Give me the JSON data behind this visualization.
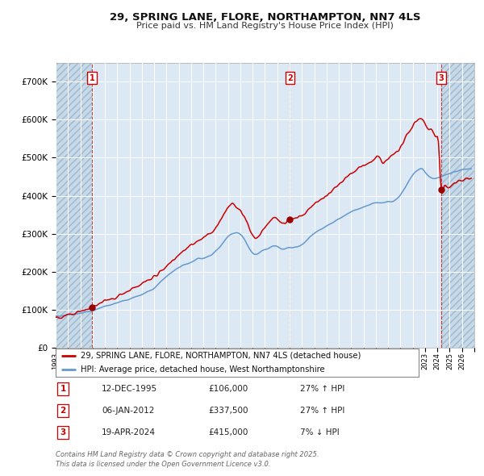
{
  "title1": "29, SPRING LANE, FLORE, NORTHAMPTON, NN7 4LS",
  "title2": "Price paid vs. HM Land Registry's House Price Index (HPI)",
  "legend_red": "29, SPRING LANE, FLORE, NORTHAMPTON, NN7 4LS (detached house)",
  "legend_blue": "HPI: Average price, detached house, West Northamptonshire",
  "sale1_date": "12-DEC-1995",
  "sale1_price": 106000,
  "sale1_label": "27% ↑ HPI",
  "sale2_date": "06-JAN-2012",
  "sale2_price": 337500,
  "sale2_label": "27% ↑ HPI",
  "sale3_date": "19-APR-2024",
  "sale3_price": 415000,
  "sale3_label": "7% ↓ HPI",
  "footer": "Contains HM Land Registry data © Crown copyright and database right 2025.\nThis data is licensed under the Open Government Licence v3.0.",
  "bg_color": "#dce9f5",
  "hatch_color": "#c0d0e8",
  "grid_color": "#ffffff",
  "red_line_color": "#cc0000",
  "blue_line_color": "#6699cc",
  "ylim_max": 750000,
  "ytick_values": [
    0,
    100000,
    200000,
    300000,
    400000,
    500000,
    600000,
    700000
  ],
  "ytick_labels": [
    "£0",
    "£100K",
    "£200K",
    "£300K",
    "£400K",
    "£500K",
    "£600K",
    "£700K"
  ],
  "xmin": 1993.0,
  "xmax": 2027.0,
  "sale1_x": 1995.95,
  "sale2_x": 2012.03,
  "sale3_x": 2024.3
}
